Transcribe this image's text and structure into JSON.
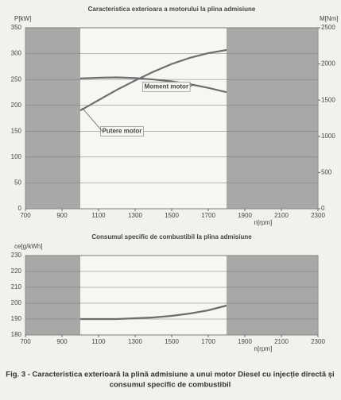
{
  "chart_data": [
    {
      "type": "line",
      "title": "Caracteristica exterioara a motorului la plina admisiune",
      "y_label": "P[kW]",
      "y2_label": "M[Nm]",
      "x_label": "n[rpm]",
      "x": [
        1000,
        1100,
        1200,
        1300,
        1400,
        1500,
        1600,
        1700,
        1800
      ],
      "series": [
        {
          "name": "Putere motor",
          "color": "#6e6e6e",
          "values": [
            190,
            210,
            230,
            248,
            265,
            280,
            292,
            301,
            307
          ]
        },
        {
          "name": "Moment motor",
          "color": "#6e6e6e",
          "axis": "y2",
          "values": [
            1800,
            1810,
            1815,
            1805,
            1785,
            1760,
            1720,
            1670,
            1610
          ]
        }
      ],
      "shaded_ranges": [
        [
          700,
          1000
        ],
        [
          1800,
          2300
        ]
      ],
      "xlim": [
        700,
        2300
      ],
      "xticks": [
        700,
        900,
        1100,
        1300,
        1500,
        1700,
        1900,
        2100,
        2300
      ],
      "ylim": [
        0,
        350
      ],
      "yticks": [
        0,
        50,
        100,
        150,
        200,
        250,
        300,
        350
      ],
      "y2lim": [
        0,
        2500
      ],
      "y2ticks": [
        0,
        500,
        1000,
        1500,
        2000,
        2500
      ]
    },
    {
      "type": "line",
      "title": "Consumul specific de combustibil la plina admisiune",
      "y_label": "ce[g/kWh]",
      "x_label": "n[rpm]",
      "x": [
        1000,
        1100,
        1200,
        1300,
        1400,
        1500,
        1600,
        1700,
        1800
      ],
      "series": [
        {
          "color": "#6e6e6e",
          "values": [
            190,
            190,
            190,
            190.5,
            191,
            192,
            193.5,
            195.5,
            198.5
          ]
        }
      ],
      "shaded_ranges": [
        [
          700,
          1000
        ],
        [
          1800,
          2300
        ]
      ],
      "xlim": [
        700,
        2300
      ],
      "xticks": [
        700,
        900,
        1100,
        1300,
        1500,
        1700,
        1900,
        2100,
        2300
      ],
      "ylim": [
        180,
        230
      ],
      "yticks": [
        180,
        190,
        200,
        210,
        220,
        230
      ]
    }
  ],
  "caption": [
    "Fig. 3 - Caracteristica exterioară la plină admisiune a unui motor Diesel cu injecție directă și",
    "consumul specific de combustibil"
  ]
}
